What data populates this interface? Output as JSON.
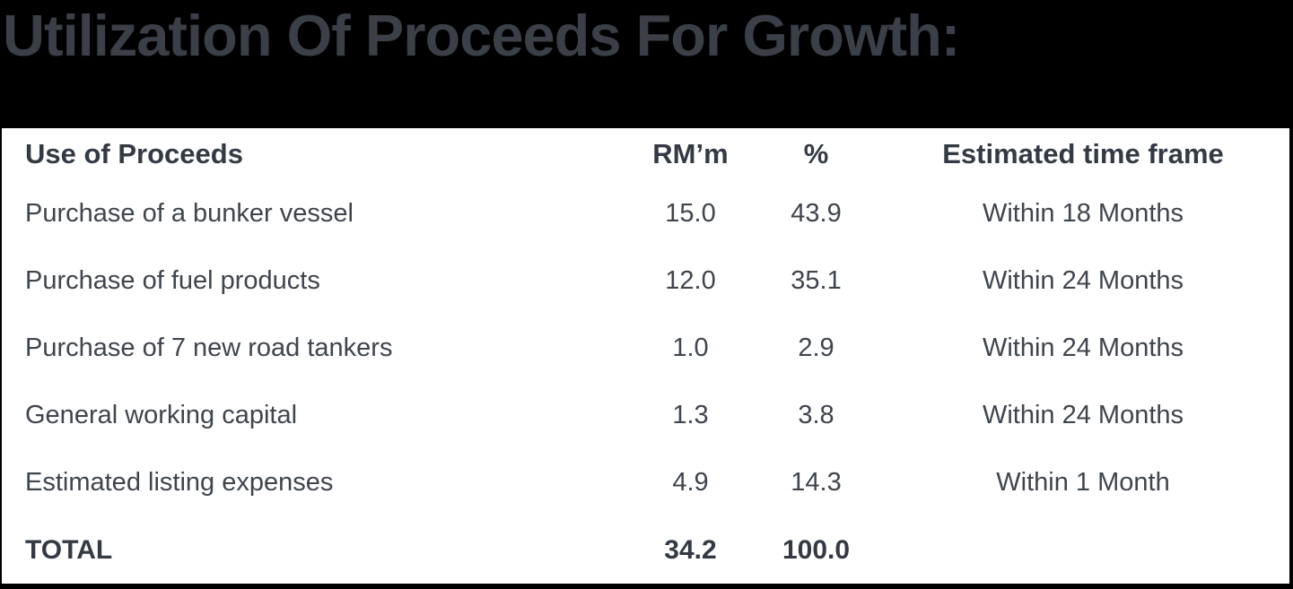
{
  "title": "Utilization Of Proceeds For Growth:",
  "colors": {
    "band_bg": "#000000",
    "panel_bg": "#ffffff",
    "title_text": "#3a3f48",
    "header_text": "#333a44",
    "body_text": "#3f454d"
  },
  "table": {
    "columns": [
      "Use of Proceeds",
      "RM’m",
      "%",
      "Estimated time frame"
    ],
    "rows": [
      {
        "use": "Purchase of a bunker vessel",
        "rm": "15.0",
        "pct": "43.9",
        "time": "Within 18 Months"
      },
      {
        "use": "Purchase of fuel products",
        "rm": "12.0",
        "pct": "35.1",
        "time": "Within 24 Months"
      },
      {
        "use": "Purchase of 7 new road tankers",
        "rm": "1.0",
        "pct": "2.9",
        "time": "Within 24 Months"
      },
      {
        "use": "General working capital",
        "rm": "1.3",
        "pct": "3.8",
        "time": "Within 24 Months"
      },
      {
        "use": "Estimated listing expenses",
        "rm": "4.9",
        "pct": "14.3",
        "time": "Within 1 Month"
      }
    ],
    "total": {
      "label": "TOTAL",
      "rm": "34.2",
      "pct": "100.0",
      "time": ""
    }
  }
}
